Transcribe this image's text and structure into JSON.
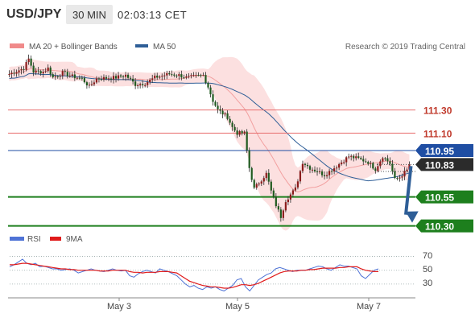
{
  "header": {
    "symbol": "USD/JPY",
    "timeframe": "30 MIN",
    "time": "02:03:13 CET"
  },
  "legend": {
    "bands_label": "MA 20 + Bollinger Bands",
    "ma50_label": "MA 50",
    "copyright": "Research © 2019 Trading Central",
    "colors": {
      "bands": "#f08a8a",
      "ma50": "#2e5e97"
    }
  },
  "levels": [
    {
      "value": 111.3,
      "label": "111.30",
      "kind": "resistance",
      "color": "#e86f6f"
    },
    {
      "value": 111.1,
      "label": "111.10",
      "kind": "resistance",
      "color": "#e86f6f"
    },
    {
      "value": 110.95,
      "label": "110.95",
      "kind": "pivot",
      "color": "#1f4ea3"
    },
    {
      "value": 110.83,
      "label": "110.83",
      "kind": "last",
      "color": "#2b2b2b"
    },
    {
      "value": 110.55,
      "label": "110.55",
      "kind": "support",
      "color": "#1d7f1d"
    },
    {
      "value": 110.3,
      "label": "110.30",
      "kind": "support",
      "color": "#1d7f1d"
    }
  ],
  "x_labels": [
    "May 3",
    "May 5",
    "May 7"
  ],
  "rsi_panel": {
    "rsi_label": "RSI",
    "ma_label": "9MA",
    "levels": [
      "70",
      "50",
      "30"
    ],
    "colors": {
      "rsi": "#4f73d6",
      "ma": "#e01b1b"
    }
  },
  "chart_data": [
    {
      "type": "candlestick",
      "title": "USD/JPY 30 MIN",
      "ylim": [
        110.27,
        111.79
      ],
      "x_ticks": [
        "May 3",
        "May 5",
        "May 7"
      ],
      "levels": [
        111.3,
        111.1,
        110.95,
        110.83,
        110.55,
        110.3
      ],
      "forecast_arrow": {
        "from": 110.83,
        "to": 110.3
      },
      "close_path": [
        [
          0,
          111.61
        ],
        [
          6,
          111.66
        ],
        [
          8,
          111.74
        ],
        [
          10,
          111.63
        ],
        [
          14,
          111.63
        ],
        [
          16,
          111.66
        ],
        [
          18,
          111.58
        ],
        [
          22,
          111.62
        ],
        [
          26,
          111.59
        ],
        [
          30,
          111.57
        ],
        [
          33,
          111.5
        ],
        [
          36,
          111.57
        ],
        [
          44,
          111.58
        ],
        [
          48,
          111.6
        ],
        [
          52,
          111.52
        ],
        [
          56,
          111.53
        ],
        [
          60,
          111.58
        ],
        [
          64,
          111.6
        ],
        [
          66,
          111.61
        ],
        [
          70,
          111.6
        ],
        [
          73,
          111.58
        ],
        [
          77,
          111.59
        ],
        [
          80,
          111.6
        ],
        [
          82,
          111.5
        ],
        [
          84,
          111.38
        ],
        [
          86,
          111.3
        ],
        [
          88,
          111.27
        ],
        [
          90,
          111.24
        ],
        [
          92,
          111.15
        ],
        [
          94,
          111.1
        ],
        [
          97,
          111.1
        ],
        [
          99,
          110.8
        ],
        [
          101,
          110.62
        ],
        [
          104,
          110.7
        ],
        [
          106,
          110.75
        ],
        [
          108,
          110.6
        ],
        [
          110,
          110.48
        ],
        [
          112,
          110.38
        ],
        [
          114,
          110.52
        ],
        [
          118,
          110.62
        ],
        [
          121,
          110.85
        ],
        [
          124,
          110.8
        ],
        [
          127,
          110.77
        ],
        [
          130,
          110.74
        ],
        [
          134,
          110.8
        ],
        [
          137,
          110.85
        ],
        [
          140,
          110.9
        ],
        [
          144,
          110.88
        ],
        [
          148,
          110.85
        ],
        [
          151,
          110.79
        ],
        [
          154,
          110.9
        ],
        [
          157,
          110.84
        ],
        [
          159,
          110.7
        ],
        [
          161,
          110.72
        ],
        [
          164,
          110.78
        ],
        [
          165,
          110.83
        ]
      ]
    },
    {
      "type": "line",
      "title": "RSI / 9MA",
      "ylim": [
        10,
        80
      ],
      "y_ticks": [
        70,
        50,
        30
      ],
      "series": [
        {
          "name": "RSI",
          "values": [
            55,
            58,
            62,
            66,
            60,
            58,
            60,
            55,
            56,
            54,
            52,
            52,
            50,
            51,
            52,
            50,
            46,
            48,
            50,
            52,
            50,
            49,
            48,
            50,
            52,
            50,
            49,
            50,
            42,
            40,
            45,
            48,
            50,
            48,
            46,
            52,
            50,
            48,
            45,
            42,
            36,
            30,
            26,
            28,
            24,
            22,
            26,
            24,
            26,
            22,
            20,
            24,
            28,
            36,
            38,
            26,
            20,
            28,
            36,
            40,
            44,
            46,
            52,
            54,
            52,
            50,
            48,
            50,
            50,
            50,
            52,
            54,
            56,
            55,
            52,
            50,
            54,
            58,
            56,
            56,
            54,
            52,
            42,
            38,
            44,
            50,
            52
          ]
        },
        {
          "name": "9MA",
          "values": [
            58,
            58,
            59,
            60,
            60,
            59,
            58,
            57,
            56,
            55,
            54,
            53,
            52,
            52,
            51,
            51,
            50,
            50,
            50,
            50,
            50,
            49,
            49,
            49,
            50,
            50,
            50,
            50,
            48,
            47,
            47,
            46,
            47,
            47,
            47,
            48,
            48,
            48,
            47,
            46,
            42,
            38,
            34,
            32,
            30,
            28,
            27,
            26,
            26,
            25,
            24,
            24,
            25,
            27,
            29,
            29,
            28,
            29,
            31,
            34,
            37,
            40,
            43,
            46,
            48,
            49,
            49,
            49,
            50,
            50,
            51,
            51,
            52,
            53,
            53,
            53,
            53,
            54,
            54,
            55,
            55,
            55,
            52,
            50,
            49,
            48,
            48
          ]
        }
      ]
    }
  ]
}
